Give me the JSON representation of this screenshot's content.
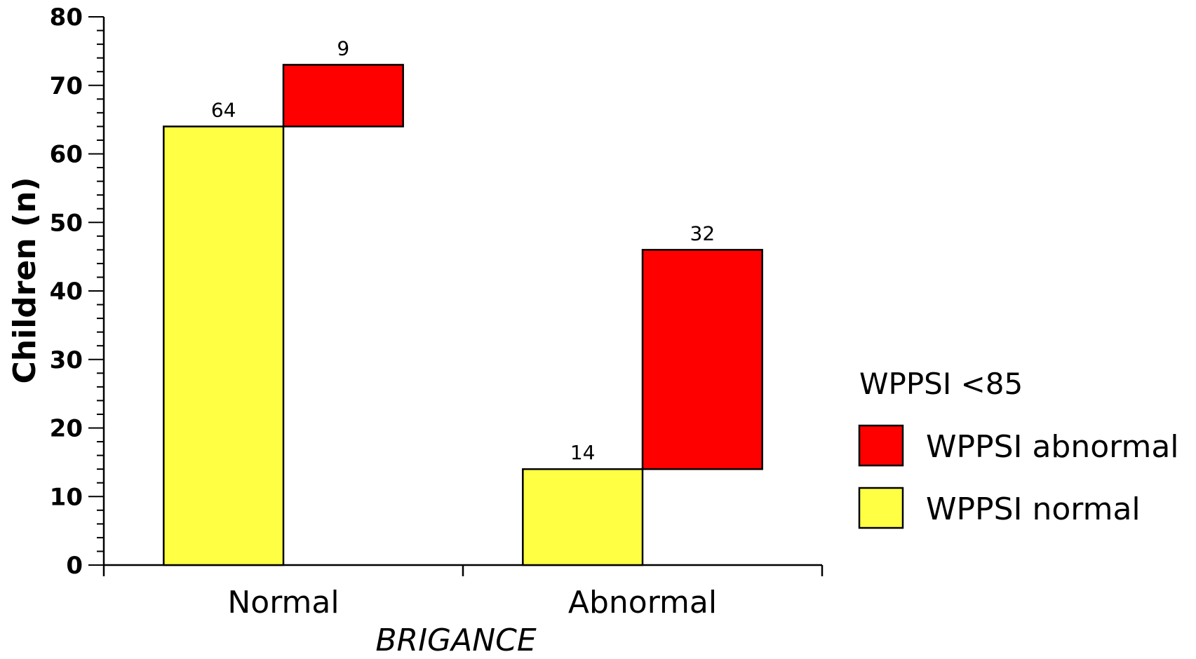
{
  "chart_data": {
    "type": "bar",
    "stacked": true,
    "categories": [
      "Normal",
      "Abnormal"
    ],
    "series": [
      {
        "name": "WPPSI normal",
        "values": [
          64,
          14
        ],
        "color": "#ffff44"
      },
      {
        "name": "WPPSI abnormal",
        "values": [
          9,
          32
        ],
        "color": "#ff0000"
      }
    ],
    "xlabel": "BRIGANCE",
    "ylabel": "Children (n)",
    "ylim": [
      0,
      80
    ],
    "yticks": [
      "0",
      "10",
      "20",
      "30",
      "40",
      "50",
      "60",
      "70",
      "80"
    ],
    "data_labels": {
      "Normal": {
        "WPPSI normal": "64",
        "WPPSI abnormal": "9"
      },
      "Abnormal": {
        "WPPSI normal": "14",
        "WPPSI abnormal": "32"
      }
    },
    "legend": {
      "title": "WPPSI <85",
      "position": "right",
      "entries": [
        "WPPSI abnormal",
        "WPPSI normal"
      ]
    },
    "grid": false
  }
}
